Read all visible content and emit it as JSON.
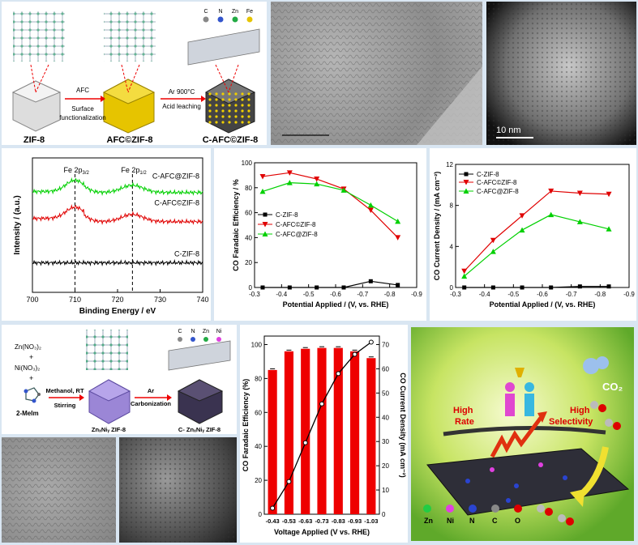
{
  "top_scheme": {
    "legend": [
      "C",
      "N",
      "Zn",
      "Fe"
    ],
    "steps": [
      "AFC",
      "Surface",
      "functionalization",
      "Ar 900°C",
      "Acid leaching"
    ],
    "labels": [
      "ZIF-8",
      "AFC©ZIF-8",
      "C-AFC©ZIF-8"
    ]
  },
  "scale_label": "10 nm",
  "chart_data": [
    {
      "type": "line",
      "xlabel": "Binding Energy / eV",
      "ylabel": "Intensity / (a.u.)",
      "xlim": [
        700,
        740
      ],
      "xticks": [
        "700",
        "710",
        "720",
        "730",
        "740"
      ],
      "peaks": [
        {
          "label_main": "Fe 2p",
          "sub": "3/2",
          "x": 710
        },
        {
          "label_main": "Fe 2p",
          "sub": "1/2",
          "x": 723.5
        }
      ],
      "series": [
        {
          "name": "C-AFC@ZIF-8",
          "color": "#00d000",
          "level": 0.75
        },
        {
          "name": "C-AFC©ZIF-8",
          "color": "#e00000",
          "level": 0.55
        },
        {
          "name": "C-ZIF-8",
          "color": "#000000",
          "level": 0.22
        }
      ]
    },
    {
      "type": "line",
      "xlabel": "Potential Applied / (V, vs. RHE)",
      "ylabel": "CO Faradaic Efficiency / %",
      "xlim": [
        -0.3,
        -0.9
      ],
      "ylim": [
        0,
        100
      ],
      "xticks": [
        "-0.3",
        "-0.4",
        "-0.5",
        "-0.6",
        "-0.7",
        "-0.8",
        "-0.9"
      ],
      "yticks": [
        "0",
        "20",
        "40",
        "60",
        "80",
        "100"
      ],
      "x": [
        -0.33,
        -0.43,
        -0.53,
        -0.63,
        -0.73,
        -0.83
      ],
      "series": [
        {
          "name": "C-ZIF-8",
          "color": "#000000",
          "marker": "square",
          "values": [
            0,
            0,
            0,
            0,
            5,
            2
          ]
        },
        {
          "name": "C-AFC©ZIF-8",
          "color": "#e00000",
          "marker": "tri-down",
          "values": [
            89,
            92,
            87,
            79,
            62,
            40
          ]
        },
        {
          "name": "C-AFC@ZIF-8",
          "color": "#00d000",
          "marker": "tri-up",
          "values": [
            77,
            84,
            83,
            78,
            66,
            53
          ]
        }
      ]
    },
    {
      "type": "line",
      "xlabel": "Potential Applied / (V, vs. RHE)",
      "ylabel": "CO Current Density / (mA cm⁻²)",
      "xlim": [
        -0.3,
        -0.9
      ],
      "ylim": [
        0,
        12
      ],
      "xticks": [
        "-0.3",
        "-0.4",
        "-0.5",
        "-0.6",
        "-0.7",
        "-0.8",
        "-0.9"
      ],
      "yticks": [
        "0",
        "4",
        "8",
        "12"
      ],
      "x": [
        -0.33,
        -0.43,
        -0.53,
        -0.63,
        -0.73,
        -0.83
      ],
      "series": [
        {
          "name": "C-ZIF-8",
          "color": "#000000",
          "marker": "square",
          "values": [
            0,
            0,
            0,
            0,
            0.1,
            0.1
          ]
        },
        {
          "name": "C-AFC©ZIF-8",
          "color": "#e00000",
          "marker": "tri-down",
          "values": [
            1.6,
            4.6,
            7.0,
            9.4,
            9.2,
            9.1
          ]
        },
        {
          "name": "C-AFC@ZIF-8",
          "color": "#00d000",
          "marker": "tri-up",
          "values": [
            1.1,
            3.5,
            5.6,
            7.1,
            6.4,
            5.7
          ]
        }
      ]
    },
    {
      "type": "bar",
      "xlabel": "Voltage Applied (V vs. RHE)",
      "ylabel": "CO Faradaic Efficiency (%)",
      "y2label": "CO Current Density (mA cm⁻²)",
      "categories": [
        "-0.43",
        "-0.53",
        "-0.63",
        "-0.73",
        "-0.83",
        "-0.93",
        "-1.03"
      ],
      "ylim": [
        0,
        105
      ],
      "y2lim": [
        0,
        73.5
      ],
      "yticks": [
        "0",
        "20",
        "40",
        "60",
        "80",
        "100"
      ],
      "y2ticks": [
        "0",
        "10",
        "20",
        "30",
        "40",
        "50",
        "60",
        "70"
      ],
      "bar_values": [
        85,
        96,
        97.5,
        98,
        98,
        96,
        92
      ],
      "line_values": [
        2.5,
        13.5,
        29.5,
        45.5,
        58,
        66,
        71
      ]
    }
  ],
  "bottom_scheme": {
    "reagents": [
      "Zn(NO₃)₂",
      "+",
      "Ni(NO₃)₂",
      "+",
      "2-MeIm"
    ],
    "step1": [
      "Methanol, RT",
      "Stirring"
    ],
    "step2": [
      "Ar",
      "Carbonization"
    ],
    "labels": [
      "ZnₓNiᵧ ZIF-8",
      "C- ZnₓNiᵧ ZIF-8"
    ],
    "legend": [
      "C",
      "N",
      "Zn",
      "Ni"
    ]
  },
  "toc": {
    "co2": "CO₂",
    "high_rate": [
      "High",
      "Rate"
    ],
    "high_sel": [
      "High",
      "Selectivity"
    ],
    "legend": [
      "Zn",
      "Ni",
      "N",
      "C",
      "O"
    ]
  }
}
